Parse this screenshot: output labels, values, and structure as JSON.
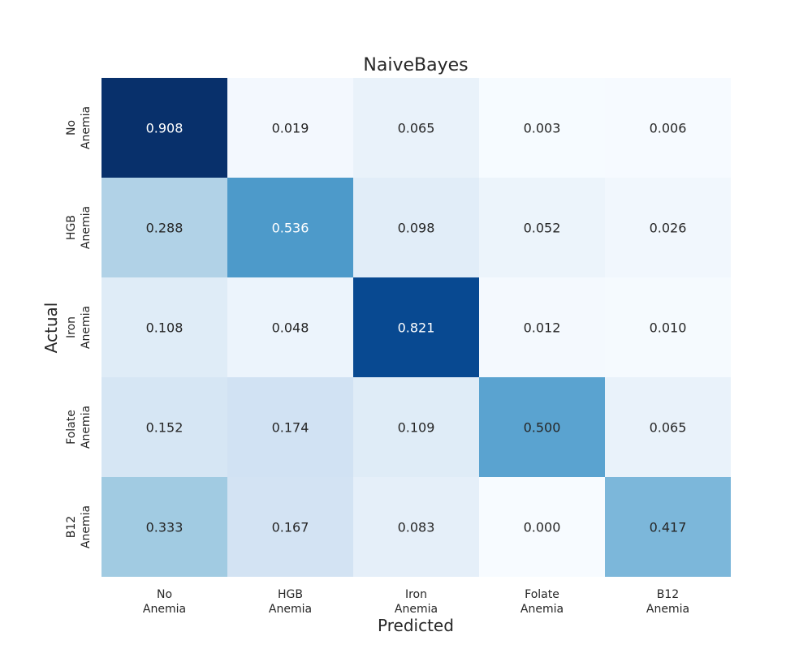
{
  "chart_data": {
    "type": "heatmap",
    "title": "NaiveBayes",
    "xlabel": "Predicted",
    "ylabel": "Actual",
    "x_categories": [
      [
        "No",
        "Anemia"
      ],
      [
        "HGB",
        "Anemia"
      ],
      [
        "Iron",
        "Anemia"
      ],
      [
        "Folate",
        "Anemia"
      ],
      [
        "B12",
        "Anemia"
      ]
    ],
    "y_categories": [
      [
        "No",
        "Anemia"
      ],
      [
        "HGB",
        "Anemia"
      ],
      [
        "Iron",
        "Anemia"
      ],
      [
        "Folate",
        "Anemia"
      ],
      [
        "B12",
        "Anemia"
      ]
    ],
    "values": [
      [
        0.908,
        0.019,
        0.065,
        0.003,
        0.006
      ],
      [
        0.288,
        0.536,
        0.098,
        0.052,
        0.026
      ],
      [
        0.108,
        0.048,
        0.821,
        0.012,
        0.01
      ],
      [
        0.152,
        0.174,
        0.109,
        0.5,
        0.065
      ],
      [
        0.333,
        0.167,
        0.083,
        0.0,
        0.417
      ]
    ],
    "value_labels": [
      [
        "0.908",
        "0.019",
        "0.065",
        "0.003",
        "0.006"
      ],
      [
        "0.288",
        "0.536",
        "0.098",
        "0.052",
        "0.026"
      ],
      [
        "0.108",
        "0.048",
        "0.821",
        "0.012",
        "0.010"
      ],
      [
        "0.152",
        "0.174",
        "0.109",
        "0.500",
        "0.065"
      ],
      [
        "0.333",
        "0.167",
        "0.083",
        "0.000",
        "0.417"
      ]
    ],
    "colormap": "Blues",
    "colorbar": false,
    "grid": false
  }
}
